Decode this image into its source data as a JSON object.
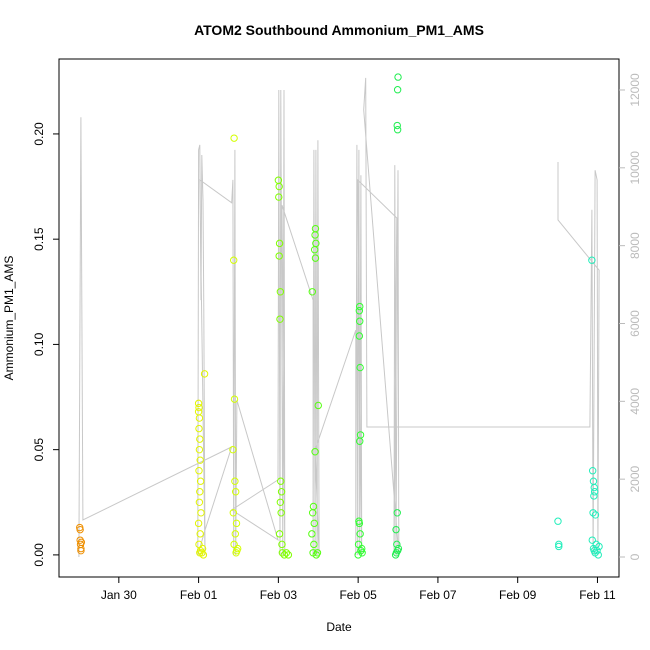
{
  "chart_data": {
    "type": "scatter",
    "title": "ATOM2 Southbound Ammonium_PM1_AMS",
    "x_label": "Date",
    "y_label": "Ammonium_PM1_AMS",
    "xlim": [
      -1.5,
      12.54
    ],
    "ylim": [
      -0.0105,
      0.2356
    ],
    "y2lim": [
      -514,
      12796
    ],
    "xticks": [
      {
        "value": 0,
        "label": "Jan 30"
      },
      {
        "value": 2,
        "label": "Feb 01"
      },
      {
        "value": 4,
        "label": "Feb 03"
      },
      {
        "value": 6,
        "label": "Feb 05"
      },
      {
        "value": 8,
        "label": "Feb 07"
      },
      {
        "value": 10,
        "label": "Feb 09"
      },
      {
        "value": 12,
        "label": "Feb 11"
      }
    ],
    "yticks": [
      {
        "value": 0,
        "label": "0.00"
      },
      {
        "value": 0.05,
        "label": "0.05"
      },
      {
        "value": 0.1,
        "label": "0.10"
      },
      {
        "value": 0.15,
        "label": "0.15"
      },
      {
        "value": 0.2,
        "label": "0.20"
      }
    ],
    "y2ticks": [
      0,
      2000,
      4000,
      6000,
      8000,
      10000,
      12000
    ],
    "series": [
      {
        "color": "#ee8f00",
        "x": [
          -0.98,
          -0.97,
          -0.97,
          -0.96,
          -0.95,
          -0.95,
          -0.94
        ],
        "values": [
          0.013,
          0.012,
          0.007,
          0.005,
          0.003,
          0.002,
          0.006
        ]
      },
      {
        "color": "#e2f500",
        "x": [
          2.0,
          2.01,
          2.0,
          2.02,
          2.01,
          2.03,
          2.02,
          2.04,
          2.01,
          2.05,
          2.03,
          2.02,
          2.06,
          2.0,
          2.04,
          2.01,
          2.05,
          2.03,
          2.15,
          2.1,
          2.08,
          2.12
        ],
        "values": [
          0.072,
          0.07,
          0.068,
          0.065,
          0.06,
          0.055,
          0.05,
          0.045,
          0.04,
          0.035,
          0.03,
          0.025,
          0.02,
          0.015,
          0.01,
          0.005,
          0.002,
          0.001,
          0.086,
          0.003,
          0.001,
          0.0
        ]
      },
      {
        "color": "#d4ff00",
        "x": [
          2.89,
          2.88,
          2.9,
          2.86,
          2.91,
          2.93,
          2.87,
          2.95,
          2.92,
          2.89,
          2.96,
          2.94,
          2.98
        ],
        "values": [
          0.198,
          0.14,
          0.074,
          0.05,
          0.035,
          0.03,
          0.02,
          0.015,
          0.01,
          0.005,
          0.002,
          0.001,
          0.003
        ]
      },
      {
        "color": "#80ff00",
        "x": [
          4.0,
          4.02,
          4.01,
          4.03,
          4.02,
          4.05,
          4.04,
          4.06,
          4.08,
          4.05,
          4.07,
          4.03,
          4.09,
          4.1,
          4.15,
          4.2,
          4.25
        ],
        "values": [
          0.178,
          0.175,
          0.17,
          0.148,
          0.142,
          0.125,
          0.112,
          0.035,
          0.03,
          0.025,
          0.02,
          0.01,
          0.005,
          0.001,
          0.0,
          0.001,
          0.0
        ]
      },
      {
        "color": "#55ff10",
        "x": [
          4.93,
          4.92,
          4.94,
          4.91,
          4.93,
          4.85,
          5.0,
          4.92,
          4.88,
          4.86,
          4.9,
          4.84,
          4.89,
          4.87,
          4.95,
          4.98
        ],
        "values": [
          0.155,
          0.152,
          0.148,
          0.145,
          0.141,
          0.125,
          0.071,
          0.049,
          0.023,
          0.02,
          0.015,
          0.01,
          0.005,
          0.001,
          0.0,
          0.001
        ]
      },
      {
        "color": "#30ff30",
        "x": [
          6.04,
          6.03,
          6.04,
          6.03,
          6.05,
          6.06,
          6.04,
          6.02,
          6.03,
          6.05,
          6.01,
          6.07,
          6.0,
          6.09,
          6.1
        ],
        "values": [
          0.118,
          0.116,
          0.111,
          0.104,
          0.089,
          0.057,
          0.054,
          0.016,
          0.015,
          0.01,
          0.005,
          0.002,
          0.0,
          0.003,
          0.001
        ]
      },
      {
        "color": "#20ee50",
        "x": [
          7.0,
          6.99,
          6.98,
          6.99,
          6.98,
          6.95,
          6.97,
          6.99,
          6.94,
          7.01,
          6.96
        ],
        "values": [
          0.227,
          0.221,
          0.204,
          0.202,
          0.02,
          0.012,
          0.005,
          0.002,
          0.0,
          0.003,
          0.001
        ]
      },
      {
        "color": "#22eebb",
        "x": [
          11.01,
          11.03,
          11.03,
          11.86,
          11.88,
          11.9,
          11.92,
          11.93,
          11.91,
          11.89,
          11.95,
          11.87,
          11.97,
          11.9,
          11.99,
          11.94,
          12.02,
          12.04,
          11.92
        ],
        "values": [
          0.016,
          0.005,
          0.004,
          0.14,
          0.04,
          0.035,
          0.032,
          0.03,
          0.028,
          0.02,
          0.019,
          0.007,
          0.005,
          0.003,
          0.002,
          0.001,
          0.0,
          0.004,
          0.002
        ]
      },
      {
        "color": "#c8c8c8",
        "type": "line",
        "axis": "y2",
        "x": [
          -1.0,
          -0.95,
          -0.9,
          2.83,
          2.16,
          1.98,
          2.0,
          2.03,
          2.06,
          2.08,
          2.11,
          2.13,
          2.16,
          2.03,
          2.83,
          2.86,
          2.88,
          2.91,
          2.93,
          2.96,
          3.99,
          2.83,
          3.99,
          4.01,
          4.04,
          4.06,
          4.11,
          4.14,
          4.16,
          4.09,
          4.87,
          4.87,
          4.89,
          4.92,
          4.94,
          4.97,
          4.99,
          5.02,
          4.92,
          5.94,
          5.94,
          5.97,
          5.99,
          6.02,
          6.04,
          6.07,
          6.09,
          5.99,
          6.97,
          6.9,
          6.92,
          6.95,
          7.0,
          7.02,
          6.14,
          6.19,
          6.22,
          11.81,
          11.86,
          11.89,
          11.94,
          11.99,
          12.01,
          12.04,
          11.01,
          11.01
        ],
        "values": [
          0,
          11300,
          950,
          2830,
          690,
          50,
          10460,
          10590,
          6600,
          10330,
          9170,
          6350,
          50,
          9690,
          9100,
          9690,
          50,
          10460,
          50,
          4030,
          440,
          1210,
          1980,
          12000,
          50,
          12000,
          50,
          12000,
          50,
          9040,
          6600,
          50,
          10460,
          50,
          10460,
          50,
          10710,
          50,
          2750,
          5830,
          50,
          10590,
          50,
          10460,
          50,
          9810,
          50,
          9690,
          8710,
          50,
          10070,
          50,
          9940,
          50,
          11490,
          12310,
          3340,
          3340,
          8920,
          50,
          9940,
          9690,
          50,
          7370,
          8660,
          10150
        ]
      }
    ]
  }
}
